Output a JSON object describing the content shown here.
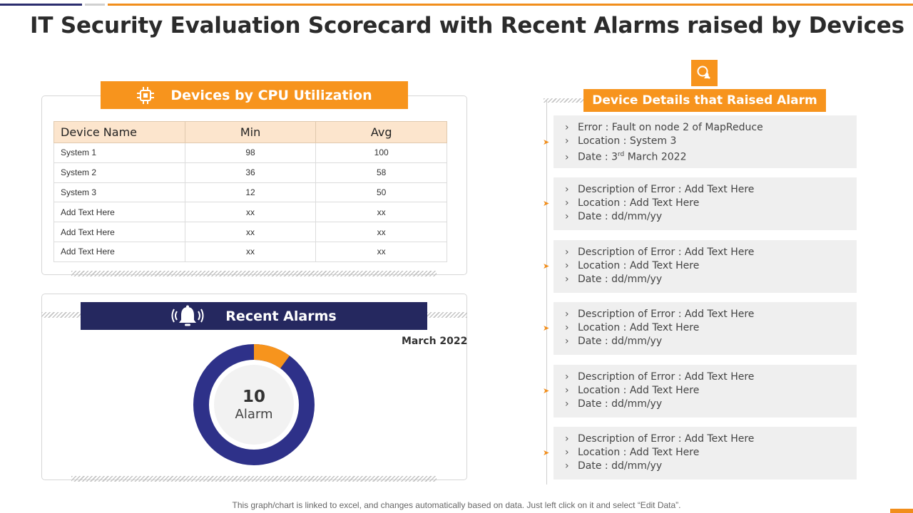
{
  "title": "IT Security Evaluation Scorecard with Recent Alarms raised by Devices",
  "cpu_panel": {
    "header": "Devices by CPU Utilization",
    "columns": [
      "Device Name",
      "Min",
      "Avg"
    ],
    "rows": [
      [
        "System 1",
        "98",
        "100"
      ],
      [
        "System 2",
        "36",
        "58"
      ],
      [
        "System 3",
        "12",
        "50"
      ],
      [
        "Add Text Here",
        "xx",
        "xx"
      ],
      [
        "Add Text Here",
        "xx",
        "xx"
      ],
      [
        "Add Text Here",
        "xx",
        "xx"
      ]
    ]
  },
  "alarms_panel": {
    "header": "Recent Alarms",
    "period": "March 2022",
    "count": "10",
    "count_label": "Alarm",
    "highlight_fraction": 0.1,
    "colors": {
      "main": "#2e3189",
      "highlight": "#f7941d"
    }
  },
  "details_panel": {
    "header": "Device Details that Raised Alarm",
    "items": [
      {
        "error": "Error : Fault on node 2 of MapReduce",
        "location": "Location : System 3",
        "date_prefix": "Date : 3",
        "date_sup": "rd",
        "date_suffix": " March 2022"
      },
      {
        "error": "Description of Error : Add Text Here",
        "location": "Location : Add Text Here",
        "date": "Date : dd/mm/yy"
      },
      {
        "error": "Description of Error : Add Text Here",
        "location": "Location : Add Text Here",
        "date": "Date : dd/mm/yy"
      },
      {
        "error": "Description of Error : Add Text Here",
        "location": "Location : Add Text Here",
        "date": "Date : dd/mm/yy"
      },
      {
        "error": "Description of Error : Add Text Here",
        "location": "Location : Add Text Here",
        "date": "Date : dd/mm/yy"
      },
      {
        "error": "Description of Error : Add Text Here",
        "location": "Location : Add Text Here",
        "date": "Date : dd/mm/yy"
      }
    ]
  },
  "footer": "This graph/chart is linked to excel, and changes automatically based on data. Just left click on it and select “Edit Data”.",
  "icons": [
    "cpu-chip-icon",
    "bell-ringing-icon",
    "bell-alert-icon"
  ],
  "theme": {
    "orange": "#f7941d",
    "navy": "#25285f"
  }
}
